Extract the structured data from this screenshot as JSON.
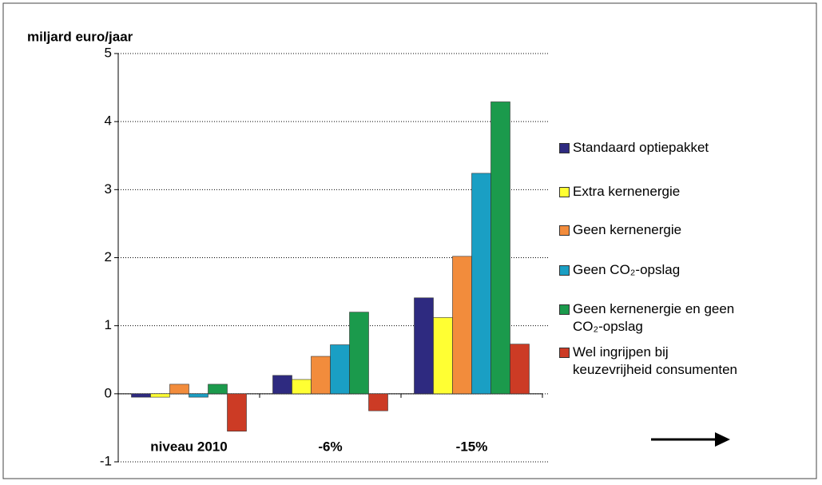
{
  "chart_data": {
    "type": "bar",
    "y_axis_label": "miljard euro/jaar",
    "categories": [
      "niveau 2010",
      "-6%",
      "-15%"
    ],
    "series": [
      {
        "name": "Standaard optiepakket",
        "color": "#2e2a80",
        "values": [
          -0.05,
          0.27,
          1.41
        ]
      },
      {
        "name": "Extra kernenergie",
        "color": "#ffff33",
        "values": [
          -0.05,
          0.21,
          1.12
        ]
      },
      {
        "name": "Geen kernenergie",
        "color": "#f28c3c",
        "values": [
          0.14,
          0.55,
          2.02
        ]
      },
      {
        "name": "Geen CO₂-opslag",
        "color": "#1a9fc4",
        "values": [
          -0.05,
          0.72,
          3.24
        ]
      },
      {
        "name": "Geen kernenergie en geen CO₂-opslag",
        "color": "#1b9a4c",
        "values": [
          0.14,
          1.2,
          4.29
        ]
      },
      {
        "name": "Wel ingrijpen bij keuzevrijheid consumenten",
        "color": "#cc3b25",
        "values": [
          -0.55,
          -0.25,
          0.73
        ]
      }
    ],
    "ylim": [
      -1,
      5
    ],
    "yticks": [
      -1,
      0,
      1,
      2,
      3,
      4,
      5
    ],
    "grid": true,
    "legend": "right"
  }
}
